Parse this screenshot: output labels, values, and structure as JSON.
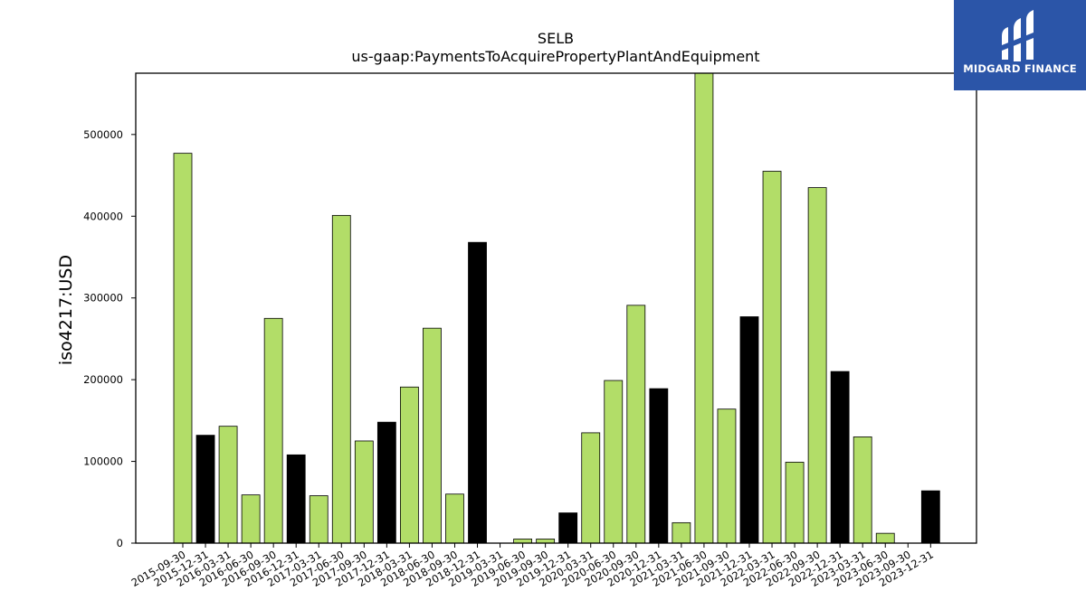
{
  "logo": {
    "text": "MIDGARD FINANCE"
  },
  "colors": {
    "default_bar": "#b2dd68",
    "q4_bar": "#000000",
    "logo_bg": "#2b55a8"
  },
  "chart_data": {
    "type": "bar",
    "title": "SELB",
    "subtitle": "us-gaap:PaymentsToAcquirePropertyPlantAndEquipment",
    "xlabel": "",
    "ylabel": "iso4217:USD",
    "ylim": [
      0,
      575000
    ],
    "yticks": [
      0,
      100000,
      200000,
      300000,
      400000,
      500000
    ],
    "grid": false,
    "legend": "none",
    "categories": [
      "2015-09-30",
      "2015-12-31",
      "2016-03-31",
      "2016-06-30",
      "2016-09-30",
      "2016-12-31",
      "2017-03-31",
      "2017-06-30",
      "2017-09-30",
      "2017-12-31",
      "2018-03-31",
      "2018-06-30",
      "2018-09-30",
      "2018-12-31",
      "2019-03-31",
      "2019-06-30",
      "2019-09-30",
      "2019-12-31",
      "2020-03-31",
      "2020-06-30",
      "2020-09-30",
      "2020-12-31",
      "2021-03-31",
      "2021-06-30",
      "2021-09-30",
      "2021-12-31",
      "2022-03-31",
      "2022-06-30",
      "2022-09-30",
      "2022-12-31",
      "2023-03-31",
      "2023-06-30",
      "2023-09-30",
      "2023-12-31"
    ],
    "values": [
      477000,
      132000,
      143000,
      59000,
      275000,
      108000,
      58000,
      401000,
      125000,
      148000,
      191000,
      263000,
      60000,
      368000,
      0,
      5000,
      5000,
      37000,
      135000,
      199000,
      291000,
      189000,
      25000,
      575000,
      164000,
      277000,
      455000,
      99000,
      435000,
      210000,
      130000,
      12000,
      0,
      64000
    ],
    "colors": [
      "#b2dd68",
      "#000000",
      "#b2dd68",
      "#b2dd68",
      "#b2dd68",
      "#000000",
      "#b2dd68",
      "#b2dd68",
      "#b2dd68",
      "#000000",
      "#b2dd68",
      "#b2dd68",
      "#b2dd68",
      "#000000",
      "#b2dd68",
      "#b2dd68",
      "#b2dd68",
      "#000000",
      "#b2dd68",
      "#b2dd68",
      "#b2dd68",
      "#000000",
      "#b2dd68",
      "#b2dd68",
      "#b2dd68",
      "#000000",
      "#b2dd68",
      "#b2dd68",
      "#b2dd68",
      "#000000",
      "#b2dd68",
      "#b2dd68",
      "#b2dd68",
      "#000000"
    ]
  }
}
